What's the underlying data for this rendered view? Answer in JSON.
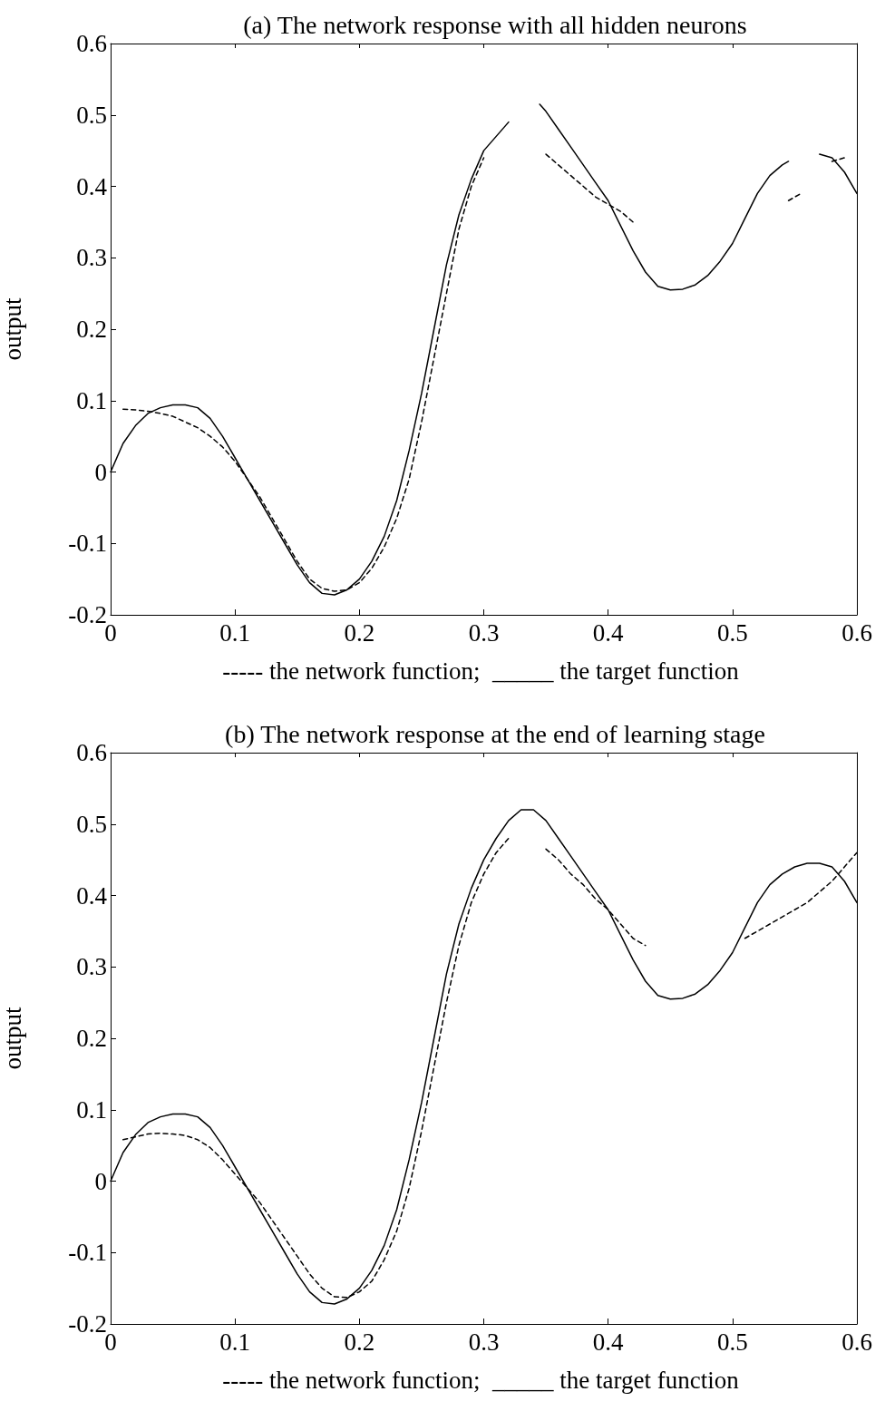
{
  "chart_data": [
    {
      "type": "line",
      "title": "(a) The network response with all hidden neurons",
      "xlabel": "----- the network function;  _____ the target function",
      "ylabel": "output",
      "xlim": [
        0,
        0.6
      ],
      "xticks": [
        0,
        0.1,
        0.2,
        0.3,
        0.4,
        0.5,
        0.6
      ],
      "ylim": [
        -0.2,
        0.6
      ],
      "yticks": [
        -0.2,
        -0.1,
        0,
        0.1,
        0.2,
        0.3,
        0.4,
        0.5,
        0.6
      ],
      "grid": false,
      "marker": "none",
      "series": [
        {
          "color": "#000000",
          "line_style": "dashed",
          "x": [
            0.01,
            0.02,
            0.03,
            0.04,
            0.05,
            0.06,
            0.07,
            0.08,
            0.09,
            0.1,
            0.11,
            0.12,
            0.13,
            0.14,
            0.15,
            0.16,
            0.17,
            0.18,
            0.19,
            0.2,
            0.21,
            0.22,
            0.23,
            0.24,
            0.25,
            0.26,
            0.27,
            0.28,
            0.29,
            0.3,
            null,
            0.35,
            0.36,
            0.37,
            0.38,
            0.39,
            0.4,
            0.41,
            0.42,
            null,
            0.545,
            0.555,
            null,
            0.58,
            0.59
          ],
          "values": [
            0.088,
            0.087,
            0.085,
            0.082,
            0.078,
            0.07,
            0.062,
            0.05,
            0.035,
            0.015,
            -0.01,
            -0.035,
            -0.065,
            -0.095,
            -0.125,
            -0.15,
            -0.163,
            -0.167,
            -0.165,
            -0.155,
            -0.135,
            -0.105,
            -0.065,
            -0.01,
            0.07,
            0.16,
            0.25,
            0.34,
            0.4,
            0.44,
            null,
            0.445,
            0.43,
            0.415,
            0.4,
            0.385,
            0.375,
            0.365,
            0.35,
            null,
            0.38,
            0.39,
            null,
            0.435,
            0.44
          ]
        },
        {
          "color": "#000000",
          "line_style": "solid",
          "x": [
            0,
            0.01,
            0.02,
            0.03,
            0.04,
            0.05,
            0.06,
            0.07,
            0.08,
            0.09,
            0.1,
            0.11,
            0.12,
            0.13,
            0.14,
            0.15,
            0.16,
            0.17,
            0.18,
            0.19,
            0.2,
            0.21,
            0.22,
            0.23,
            0.24,
            0.25,
            0.26,
            0.27,
            0.28,
            0.29,
            0.3,
            0.31,
            0.32,
            null,
            0.345,
            0.35,
            0.36,
            0.37,
            0.38,
            0.39,
            0.4,
            0.41,
            0.42,
            0.43,
            0.44,
            0.45,
            0.46,
            0.47,
            0.48,
            0.49,
            0.5,
            0.51,
            0.52,
            0.53,
            0.54,
            0.545,
            null,
            0.57,
            0.58,
            0.59,
            0.6
          ],
          "values": [
            0,
            0.04,
            0.065,
            0.082,
            0.09,
            0.094,
            0.094,
            0.09,
            0.075,
            0.05,
            0.02,
            -0.01,
            -0.04,
            -0.07,
            -0.1,
            -0.13,
            -0.155,
            -0.17,
            -0.172,
            -0.165,
            -0.15,
            -0.125,
            -0.09,
            -0.04,
            0.03,
            0.11,
            0.2,
            0.29,
            0.36,
            0.41,
            0.45,
            0.47,
            0.49,
            null,
            0.515,
            0.505,
            0.48,
            0.455,
            0.43,
            0.405,
            0.38,
            0.345,
            0.31,
            0.28,
            0.26,
            0.255,
            0.256,
            0.262,
            0.275,
            0.295,
            0.32,
            0.355,
            0.39,
            0.415,
            0.43,
            0.435,
            null,
            0.445,
            0.44,
            0.42,
            0.39
          ]
        }
      ]
    },
    {
      "type": "line",
      "title": "(b) The network response at the end of learning stage",
      "xlabel": "----- the network function;  _____ the target function",
      "ylabel": "output",
      "xlim": [
        0,
        0.6
      ],
      "xticks": [
        0,
        0.1,
        0.2,
        0.3,
        0.4,
        0.5,
        0.6
      ],
      "ylim": [
        -0.2,
        0.6
      ],
      "yticks": [
        -0.2,
        -0.1,
        0,
        0.1,
        0.2,
        0.3,
        0.4,
        0.5,
        0.6
      ],
      "grid": false,
      "marker": "none",
      "series": [
        {
          "color": "#000000",
          "line_style": "dashed",
          "x": [
            0.01,
            0.02,
            0.03,
            0.04,
            0.05,
            0.06,
            0.07,
            0.08,
            0.09,
            0.1,
            0.11,
            0.12,
            0.13,
            0.14,
            0.15,
            0.16,
            0.17,
            0.18,
            0.19,
            0.2,
            0.21,
            0.22,
            0.23,
            0.24,
            0.25,
            0.26,
            0.27,
            0.28,
            0.29,
            0.3,
            0.31,
            0.32,
            null,
            0.35,
            0.36,
            0.37,
            0.38,
            0.39,
            0.4,
            0.41,
            0.42,
            0.43,
            null,
            0.51,
            0.52,
            0.53,
            0.54,
            0.55,
            0.56,
            0.57,
            0.58,
            0.59,
            0.6
          ],
          "values": [
            0.058,
            0.062,
            0.066,
            0.067,
            0.066,
            0.064,
            0.058,
            0.047,
            0.03,
            0.01,
            -0.01,
            -0.03,
            -0.055,
            -0.08,
            -0.105,
            -0.13,
            -0.15,
            -0.162,
            -0.163,
            -0.155,
            -0.14,
            -0.11,
            -0.07,
            -0.01,
            0.07,
            0.16,
            0.25,
            0.33,
            0.39,
            0.43,
            0.46,
            0.48,
            null,
            0.465,
            0.45,
            0.43,
            0.415,
            0.395,
            0.38,
            0.36,
            0.34,
            0.33,
            null,
            0.34,
            0.35,
            0.36,
            0.37,
            0.38,
            0.39,
            0.405,
            0.42,
            0.44,
            0.46
          ]
        },
        {
          "color": "#000000",
          "line_style": "solid",
          "x": [
            0,
            0.01,
            0.02,
            0.03,
            0.04,
            0.05,
            0.06,
            0.07,
            0.08,
            0.09,
            0.1,
            0.11,
            0.12,
            0.13,
            0.14,
            0.15,
            0.16,
            0.17,
            0.18,
            0.19,
            0.2,
            0.21,
            0.22,
            0.23,
            0.24,
            0.25,
            0.26,
            0.27,
            0.28,
            0.29,
            0.3,
            0.31,
            0.32,
            0.33,
            0.34,
            0.35,
            0.36,
            0.37,
            0.38,
            0.39,
            0.4,
            0.41,
            0.42,
            0.43,
            0.44,
            0.45,
            0.46,
            0.47,
            0.48,
            0.49,
            0.5,
            0.51,
            0.52,
            0.53,
            0.54,
            0.55,
            0.56,
            0.57,
            0.58,
            0.59,
            0.6
          ],
          "values": [
            0,
            0.04,
            0.065,
            0.082,
            0.09,
            0.094,
            0.094,
            0.09,
            0.075,
            0.05,
            0.02,
            -0.01,
            -0.04,
            -0.07,
            -0.1,
            -0.13,
            -0.155,
            -0.17,
            -0.172,
            -0.165,
            -0.15,
            -0.125,
            -0.09,
            -0.04,
            0.03,
            0.11,
            0.2,
            0.29,
            0.36,
            0.41,
            0.45,
            0.48,
            0.505,
            0.52,
            0.52,
            0.505,
            0.48,
            0.455,
            0.43,
            0.405,
            0.38,
            0.345,
            0.31,
            0.28,
            0.26,
            0.255,
            0.256,
            0.262,
            0.275,
            0.295,
            0.32,
            0.355,
            0.39,
            0.415,
            0.43,
            0.44,
            0.445,
            0.445,
            0.44,
            0.42,
            0.39
          ]
        }
      ]
    }
  ]
}
